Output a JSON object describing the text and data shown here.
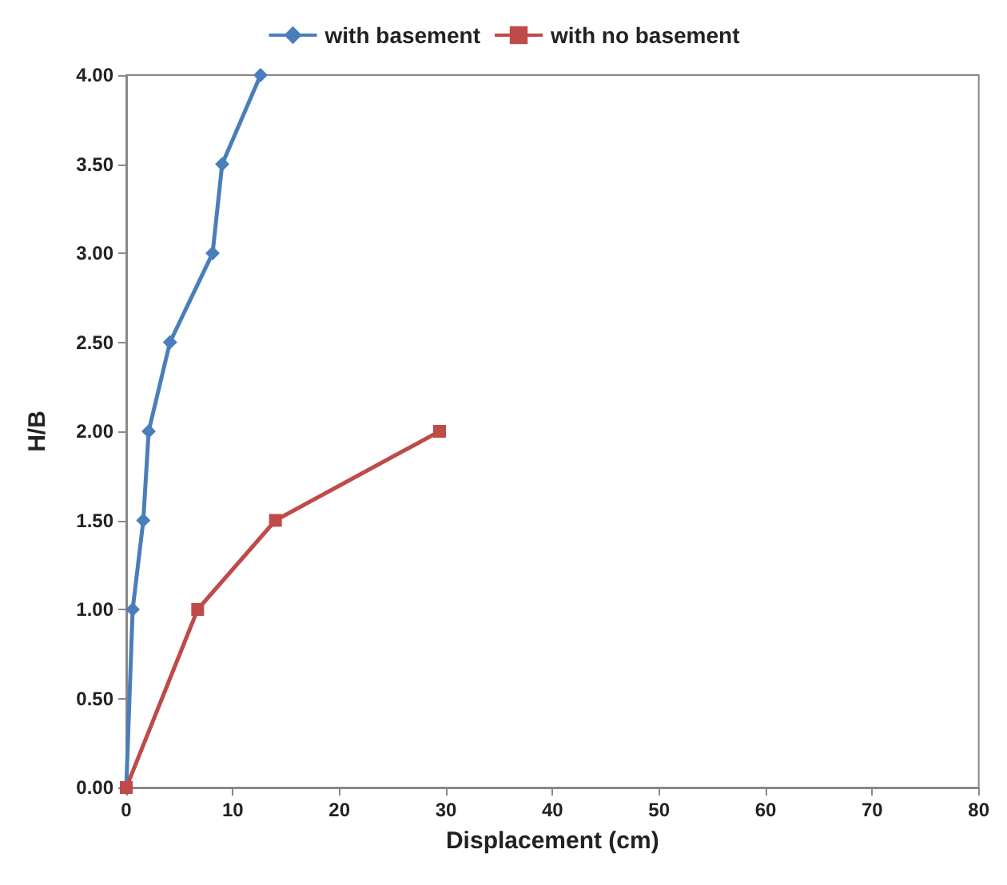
{
  "chart_data": {
    "type": "line",
    "xlabel": "Displacement (cm)",
    "ylabel": "H/B",
    "xlim": [
      0,
      80
    ],
    "xticks": [
      0,
      10,
      20,
      30,
      40,
      50,
      60,
      70,
      80
    ],
    "ylim": [
      0,
      4
    ],
    "yticks": [
      {
        "value": 0,
        "label": "0.00"
      },
      {
        "value": 0.5,
        "label": "0.50"
      },
      {
        "value": 1,
        "label": "1.00"
      },
      {
        "value": 1.5,
        "label": "1.50"
      },
      {
        "value": 2,
        "label": "2.00"
      },
      {
        "value": 2.5,
        "label": "2.50"
      },
      {
        "value": 3,
        "label": "3.00"
      },
      {
        "value": 3.5,
        "label": "3.50"
      },
      {
        "value": 4,
        "label": "4.00"
      }
    ],
    "grid": false,
    "legend": "top",
    "series": [
      {
        "name": "with basement",
        "color": "#4a7ebb",
        "marker": "diamond",
        "x": [
          0,
          0.6,
          1.6,
          2.1,
          4.1,
          8.1,
          9.0,
          12.6
        ],
        "values": [
          0,
          1,
          1.5,
          2,
          2.5,
          3,
          3.5,
          4
        ]
      },
      {
        "name": "with no basement",
        "color": "#be4b48",
        "marker": "square",
        "x": [
          0,
          6.7,
          14.0,
          29.4
        ],
        "values": [
          0,
          1,
          1.5,
          2
        ]
      }
    ]
  }
}
